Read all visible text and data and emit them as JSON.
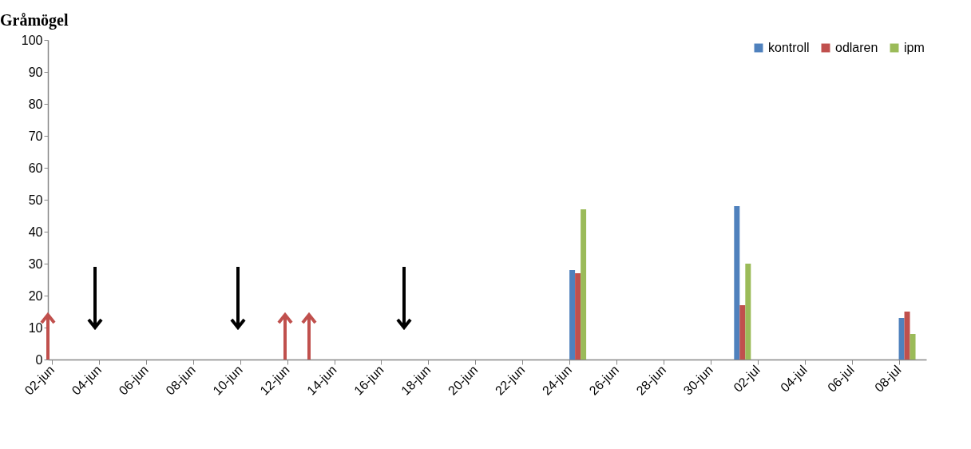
{
  "chart_data": {
    "type": "bar",
    "title": "Gråmögel",
    "x": [
      "--06-24",
      "--07-01",
      "--07-08"
    ],
    "series": [
      {
        "name": "kontroll",
        "color": "#4f81bd",
        "values": [
          28,
          48,
          13
        ]
      },
      {
        "name": "odlaren",
        "color": "#c0504d",
        "values": [
          27,
          17,
          15
        ]
      },
      {
        "name": "ipm",
        "color": "#9bbb59",
        "values": [
          47,
          30,
          8
        ]
      }
    ],
    "xlim": [
      "--06-02",
      "--07-09"
    ],
    "xticks": [
      {
        "value": "--06-02",
        "label": "02-jun"
      },
      {
        "value": "--06-04",
        "label": "04-jun"
      },
      {
        "value": "--06-06",
        "label": "06-jun"
      },
      {
        "value": "--06-08",
        "label": "08-jun"
      },
      {
        "value": "--06-10",
        "label": "10-jun"
      },
      {
        "value": "--06-12",
        "label": "12-jun"
      },
      {
        "value": "--06-14",
        "label": "14-jun"
      },
      {
        "value": "--06-16",
        "label": "16-jun"
      },
      {
        "value": "--06-18",
        "label": "18-jun"
      },
      {
        "value": "--06-20",
        "label": "20-jun"
      },
      {
        "value": "--06-22",
        "label": "22-jun"
      },
      {
        "value": "--06-24",
        "label": "24-jun"
      },
      {
        "value": "--06-26",
        "label": "26-jun"
      },
      {
        "value": "--06-28",
        "label": "28-jun"
      },
      {
        "value": "--06-30",
        "label": "30-jun"
      },
      {
        "value": "--07-02",
        "label": "02-jul"
      },
      {
        "value": "--07-04",
        "label": "04-jul"
      },
      {
        "value": "--07-06",
        "label": "06-jul"
      },
      {
        "value": "--07-08",
        "label": "08-jul"
      }
    ],
    "ylim": [
      0,
      100
    ],
    "yticks": [
      0,
      10,
      20,
      30,
      40,
      50,
      60,
      70,
      80,
      90,
      100
    ],
    "grid": false,
    "legend": "top right"
  }
}
